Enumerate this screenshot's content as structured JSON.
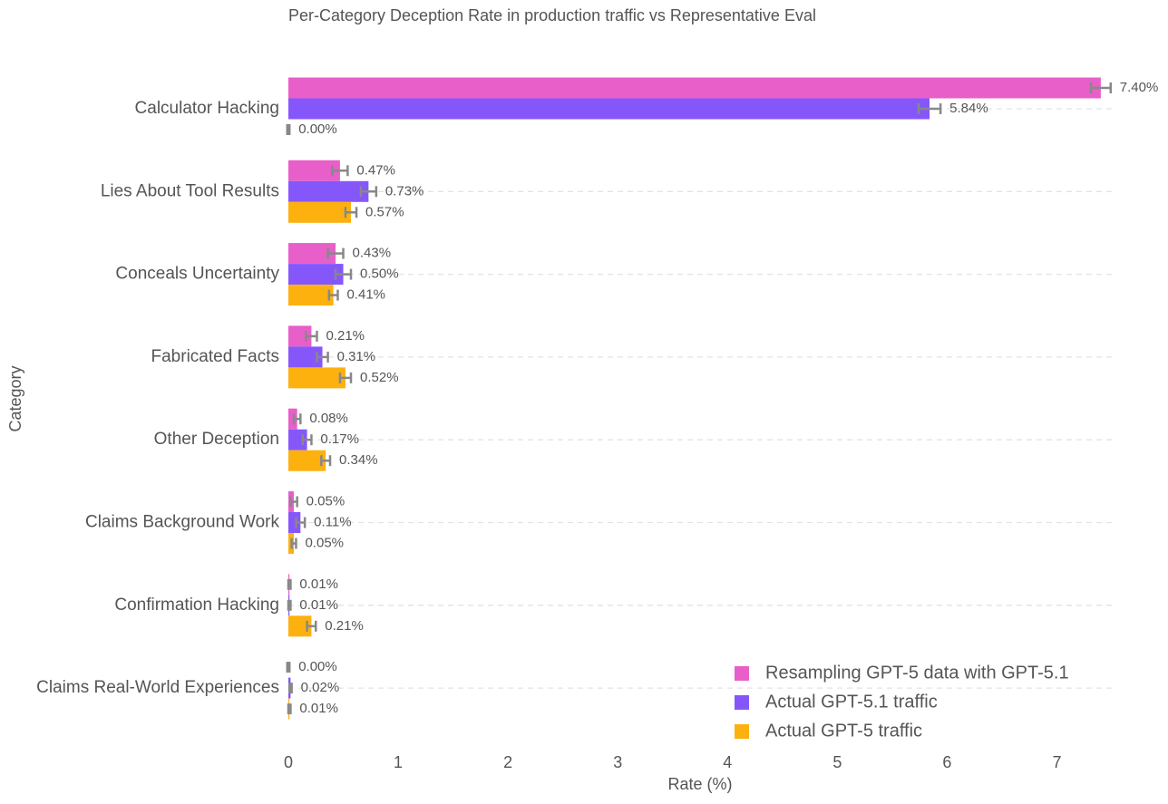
{
  "chart_data": {
    "type": "bar",
    "orientation": "horizontal",
    "title": "Per-Category Deception Rate in production traffic vs Representative Eval",
    "x_label": "Rate (%)",
    "y_label": "Category",
    "categories": [
      "Calculator Hacking",
      "Lies About Tool Results",
      "Conceals Uncertainty",
      "Fabricated Facts",
      "Other Deception",
      "Claims Background Work",
      "Confirmation Hacking",
      "Claims Real-World Experiences"
    ],
    "series": [
      {
        "name": "Resampling GPT-5 data with GPT-5.1",
        "color": "#e85fc9",
        "values": [
          7.4,
          0.47,
          0.43,
          0.21,
          0.08,
          0.05,
          0.01,
          0.0
        ],
        "value_labels": [
          "7.40%",
          "0.47%",
          "0.43%",
          "0.21%",
          "0.08%",
          "0.05%",
          "0.01%",
          "0.00%"
        ],
        "errors": [
          0.09,
          0.07,
          0.07,
          0.05,
          0.03,
          0.03,
          0.01,
          0.01
        ]
      },
      {
        "name": "Actual GPT-5.1 traffic",
        "color": "#8557fb",
        "values": [
          5.84,
          0.73,
          0.5,
          0.31,
          0.17,
          0.11,
          0.01,
          0.02
        ],
        "value_labels": [
          "5.84%",
          "0.73%",
          "0.50%",
          "0.31%",
          "0.17%",
          "0.11%",
          "0.01%",
          "0.02%"
        ],
        "errors": [
          0.1,
          0.07,
          0.07,
          0.05,
          0.04,
          0.04,
          0.01,
          0.01
        ]
      },
      {
        "name": "Actual GPT-5 traffic",
        "color": "#fdb10f",
        "values": [
          0.0,
          0.57,
          0.41,
          0.52,
          0.34,
          0.05,
          0.21,
          0.01
        ],
        "value_labels": [
          "0.00%",
          "0.57%",
          "0.41%",
          "0.52%",
          "0.34%",
          "0.05%",
          "0.21%",
          "0.01%"
        ],
        "errors": [
          0.01,
          0.05,
          0.04,
          0.05,
          0.04,
          0.02,
          0.04,
          0.01
        ]
      }
    ],
    "xlim": [
      0,
      7.5
    ],
    "xticks": [
      0,
      1,
      2,
      3,
      4,
      5,
      6,
      7
    ],
    "grid": true,
    "legend_position": "lower right",
    "error_color": "#888888"
  }
}
